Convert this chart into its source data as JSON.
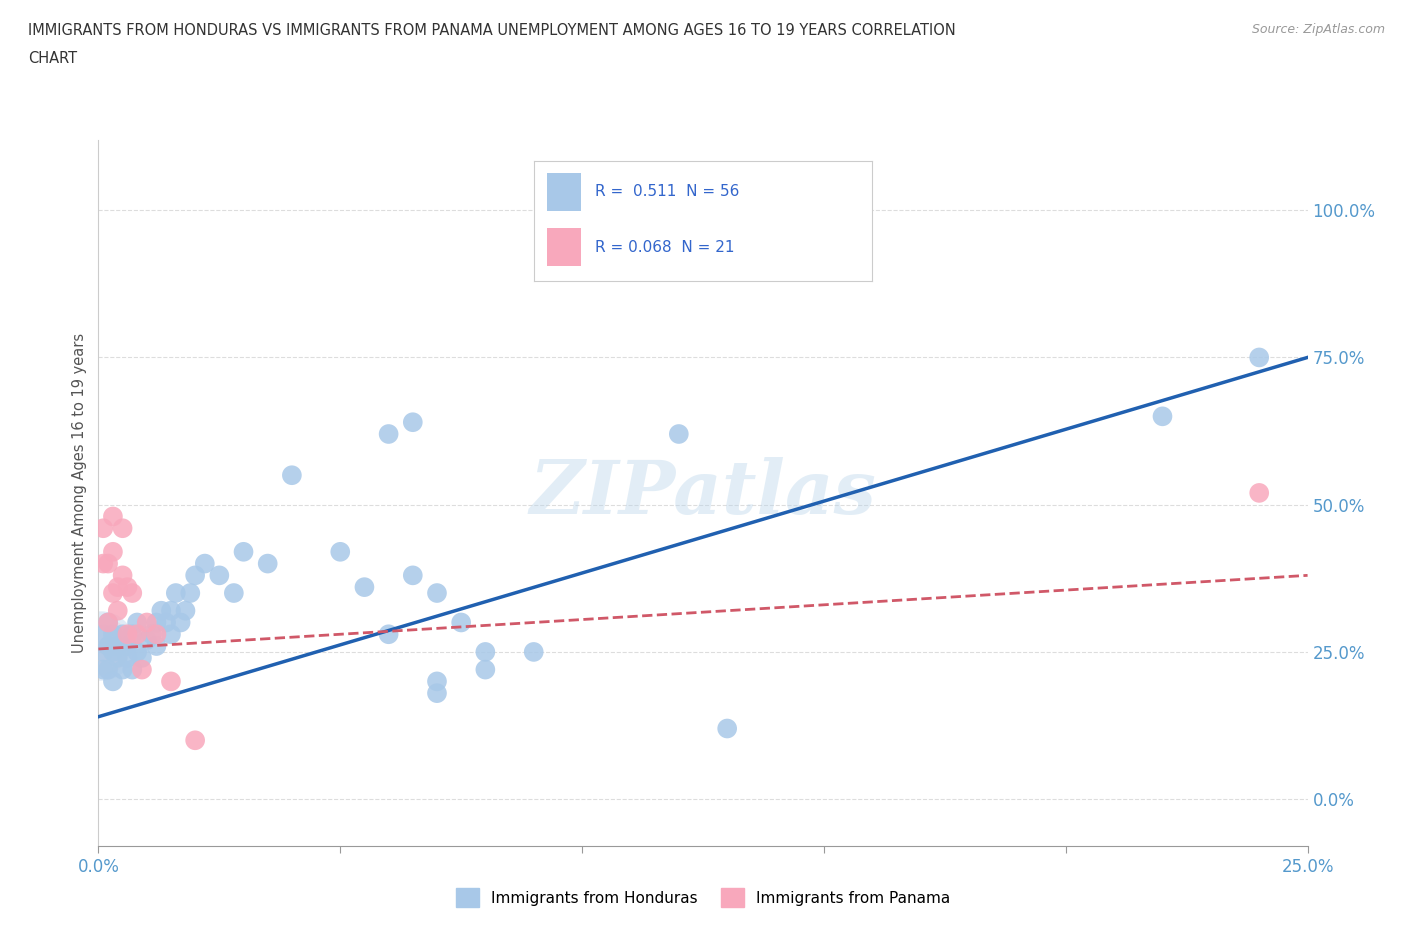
{
  "title_line1": "IMMIGRANTS FROM HONDURAS VS IMMIGRANTS FROM PANAMA UNEMPLOYMENT AMONG AGES 16 TO 19 YEARS CORRELATION",
  "title_line2": "CHART",
  "source": "Source: ZipAtlas.com",
  "ylabel": "Unemployment Among Ages 16 to 19 years",
  "xlim": [
    0.0,
    0.25
  ],
  "ylim": [
    -0.08,
    1.12
  ],
  "yticks": [
    0.0,
    0.25,
    0.5,
    0.75,
    1.0
  ],
  "ytick_labels": [
    "0.0%",
    "25.0%",
    "50.0%",
    "75.0%",
    "100.0%"
  ],
  "xtick_positions": [
    0.0,
    0.05,
    0.1,
    0.15,
    0.2,
    0.25
  ],
  "xtick_labels": [
    "0.0%",
    "",
    "",
    "",
    "",
    "25.0%"
  ],
  "honduras_color": "#a8c8e8",
  "panama_color": "#f8a8bc",
  "honduras_line_color": "#2060b0",
  "panama_line_color": "#d05868",
  "R_honduras": 0.511,
  "N_honduras": 56,
  "R_panama": 0.068,
  "N_panama": 21,
  "watermark": "ZIPatlas",
  "legend_labels": [
    "Immigrants from Honduras",
    "Immigrants from Panama"
  ],
  "h_line_y0": 0.14,
  "h_line_y1": 0.75,
  "p_line_y0": 0.255,
  "p_line_y1": 0.38,
  "honduras_x": [
    0.001,
    0.001,
    0.001,
    0.002,
    0.002,
    0.002,
    0.003,
    0.003,
    0.003,
    0.004,
    0.004,
    0.005,
    0.005,
    0.006,
    0.006,
    0.007,
    0.007,
    0.008,
    0.008,
    0.009,
    0.01,
    0.011,
    0.012,
    0.012,
    0.013,
    0.014,
    0.015,
    0.015,
    0.016,
    0.017,
    0.018,
    0.019,
    0.02,
    0.022,
    0.025,
    0.028,
    0.03,
    0.035,
    0.04,
    0.05,
    0.055,
    0.065,
    0.07,
    0.08,
    0.06,
    0.065,
    0.075,
    0.09,
    0.06,
    0.07,
    0.07,
    0.08,
    0.12,
    0.13,
    0.22,
    0.24
  ],
  "honduras_y": [
    0.25,
    0.28,
    0.22,
    0.26,
    0.3,
    0.22,
    0.25,
    0.28,
    0.2,
    0.24,
    0.26,
    0.22,
    0.28,
    0.24,
    0.26,
    0.22,
    0.28,
    0.25,
    0.3,
    0.24,
    0.27,
    0.28,
    0.3,
    0.26,
    0.32,
    0.3,
    0.28,
    0.32,
    0.35,
    0.3,
    0.32,
    0.35,
    0.38,
    0.4,
    0.38,
    0.35,
    0.42,
    0.4,
    0.55,
    0.42,
    0.36,
    0.38,
    0.35,
    0.25,
    0.62,
    0.64,
    0.3,
    0.25,
    0.28,
    0.2,
    0.18,
    0.22,
    0.62,
    0.12,
    0.65,
    0.75
  ],
  "panama_x": [
    0.001,
    0.001,
    0.002,
    0.002,
    0.003,
    0.003,
    0.004,
    0.005,
    0.005,
    0.006,
    0.007,
    0.008,
    0.009,
    0.01,
    0.012,
    0.015,
    0.003,
    0.004,
    0.006,
    0.02,
    0.24
  ],
  "panama_y": [
    0.4,
    0.46,
    0.3,
    0.4,
    0.35,
    0.42,
    0.32,
    0.46,
    0.38,
    0.36,
    0.35,
    0.28,
    0.22,
    0.3,
    0.28,
    0.2,
    0.48,
    0.36,
    0.28,
    0.1,
    0.52
  ],
  "dot_size": 200
}
